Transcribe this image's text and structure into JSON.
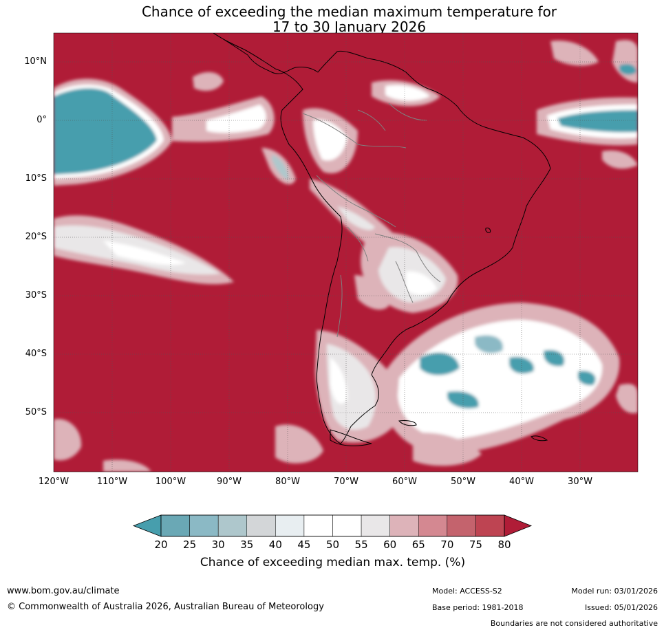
{
  "title_line1": "Chance of exceeding the median maximum temperature for",
  "title_line2": "17 to 30 January 2026",
  "lat_labels": [
    "10°N",
    "0°",
    "10°S",
    "20°S",
    "30°S",
    "40°S",
    "50°S"
  ],
  "lon_labels": [
    "120°W",
    "110°W",
    "100°W",
    "90°W",
    "80°W",
    "70°W",
    "60°W",
    "50°W",
    "40°W",
    "30°W"
  ],
  "colorbar": {
    "ticks": [
      "20",
      "25",
      "30",
      "35",
      "40",
      "45",
      "50",
      "55",
      "60",
      "65",
      "70",
      "75",
      "80"
    ],
    "colors": [
      "#479ead",
      "#6aa8b5",
      "#8bb9c5",
      "#aec7cc",
      "#d3d6d8",
      "#e8eef1",
      "#ffffff",
      "#ffffff",
      "#e9e7e8",
      "#ddb3b9",
      "#d48891",
      "#c4636d",
      "#be4452",
      "#b01c37"
    ],
    "label": "Chance of exceeding median max. temp. (%)"
  },
  "footer": {
    "website": "www.bom.gov.au/climate",
    "copyright": "© Commonwealth of Australia 2026, Australian Bureau of Meteorology",
    "model": "Model: ACCESS-S2",
    "base_period": "Base period: 1981-2018",
    "model_run": "Model run: 03/01/2026",
    "issued": "Issued: 05/01/2026",
    "disclaimer": "Boundaries are not considered authoritative"
  }
}
